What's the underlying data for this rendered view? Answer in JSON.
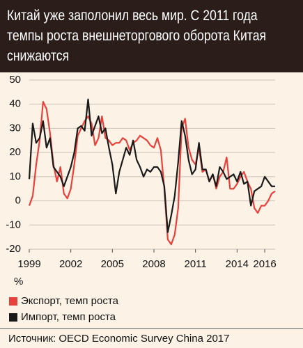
{
  "chart_data": {
    "type": "line",
    "title": "Китай уже заполонил весь мир. С 2011 года темпы роста внешнеторгового оборота Китая снижаются",
    "y_unit": "%",
    "source": "Источник: OECD Economic Survey China 2017",
    "x": [
      1999,
      1999.25,
      1999.5,
      1999.75,
      2000,
      2000.25,
      2000.5,
      2000.75,
      2001,
      2001.25,
      2001.5,
      2001.75,
      2002,
      2002.25,
      2002.5,
      2002.75,
      2003,
      2003.25,
      2003.5,
      2003.75,
      2004,
      2004.25,
      2004.5,
      2004.75,
      2005,
      2005.25,
      2005.5,
      2005.75,
      2006,
      2006.25,
      2006.5,
      2006.75,
      2007,
      2007.25,
      2007.5,
      2007.75,
      2008,
      2008.25,
      2008.5,
      2008.75,
      2009,
      2009.25,
      2009.5,
      2009.75,
      2010,
      2010.25,
      2010.5,
      2010.75,
      2011,
      2011.25,
      2011.5,
      2011.75,
      2012,
      2012.25,
      2012.5,
      2012.75,
      2013,
      2013.25,
      2013.5,
      2013.75,
      2014,
      2014.25,
      2014.5,
      2014.75,
      2015,
      2015.25,
      2015.5,
      2015.75,
      2016,
      2016.25,
      2016.5,
      2016.75
    ],
    "series": [
      {
        "name": "Экспорт, темп роста",
        "color": "#e8413c",
        "values": [
          -2,
          2,
          15,
          25,
          41,
          38,
          28,
          15,
          8,
          14,
          3,
          1,
          5,
          15,
          27,
          30,
          33,
          35,
          32,
          23,
          26,
          35,
          26,
          25,
          23,
          24,
          24,
          26,
          25,
          21,
          24,
          25,
          27,
          26,
          25,
          23,
          22,
          26,
          21,
          5,
          -16,
          -18,
          -14,
          -3,
          30,
          34,
          22,
          17,
          15,
          22,
          12,
          13,
          8,
          11,
          5,
          10,
          12,
          18,
          5,
          5,
          7,
          10,
          12,
          8,
          5,
          -3,
          -5,
          -2,
          -2,
          0,
          3,
          4
        ]
      },
      {
        "name": "Импорт, темп роста",
        "color": "#1a1a1a",
        "values": [
          9,
          32,
          24,
          26,
          33,
          22,
          26,
          14,
          12,
          10,
          6,
          10,
          14,
          20,
          30,
          31,
          29,
          42,
          27,
          31,
          35,
          28,
          30,
          22,
          15,
          3,
          12,
          17,
          22,
          19,
          25,
          17,
          14,
          10,
          13,
          12,
          14,
          14,
          12,
          6,
          -13,
          -6,
          2,
          16,
          33,
          27,
          17,
          11,
          13,
          24,
          13,
          13,
          8,
          11,
          6,
          14,
          12,
          9,
          10,
          11,
          8,
          12,
          7,
          8,
          -2,
          4,
          5,
          6,
          10,
          8,
          6,
          6
        ]
      }
    ],
    "xlim": [
      1999,
      2016.75
    ],
    "xticks": [
      1999,
      2002,
      2005,
      2008,
      2011,
      2014,
      2016
    ],
    "ylim": [
      -20,
      50
    ],
    "yticks": [
      -20,
      -10,
      0,
      10,
      20,
      30,
      40,
      50
    ],
    "grid": true
  }
}
